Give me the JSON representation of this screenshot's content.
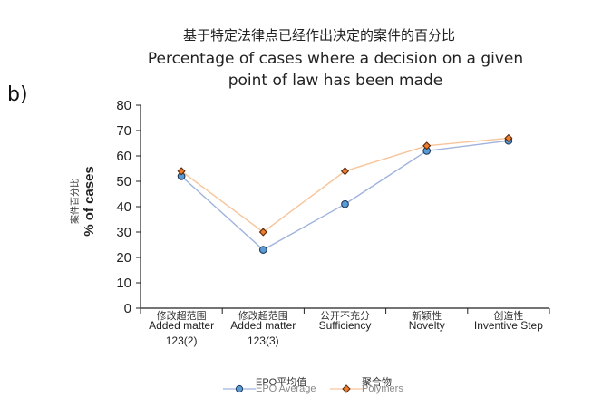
{
  "panel_label": "b)",
  "title_zh": "基于特定法律点已经作出决定的案件的百分比",
  "title_en": "Percentage of cases where a decision on a given point of law has been made",
  "colors": {
    "epo_line": "#9fb3dd",
    "epo_marker_fill": "#5b9bd5",
    "epo_marker_stroke": "#1f3a5a",
    "poly_line": "#f7c49a",
    "poly_marker_fill": "#ed7d31",
    "poly_marker_stroke": "#5a2a0a",
    "axis": "#222222"
  },
  "chart_data": {
    "type": "line",
    "ylabel_zh": "案件百分比",
    "ylabel": "% of cases",
    "ylim": [
      0,
      80
    ],
    "yticks": [
      0,
      10,
      20,
      30,
      40,
      50,
      60,
      70,
      80
    ],
    "grid": false,
    "legend_position": "bottom",
    "categories": [
      {
        "zh": "修改超范围",
        "en": "Added matter",
        "en2": "123(2)"
      },
      {
        "zh": "修改超范围",
        "en": "Added matter",
        "en2": "123(3)"
      },
      {
        "zh": "公开不充分",
        "en": "Sufficiency",
        "en2": ""
      },
      {
        "zh": "新颖性",
        "en": "Novelty",
        "en2": ""
      },
      {
        "zh": "创造性",
        "en": "Inventive Step",
        "en2": ""
      }
    ],
    "series": [
      {
        "name_zh": "EPO平均值",
        "name": "EPO Average",
        "marker": "circle",
        "values": [
          52,
          23,
          41,
          62,
          66
        ]
      },
      {
        "name_zh": "聚合物",
        "name": "Polymers",
        "marker": "diamond",
        "values": [
          54,
          30,
          54,
          64,
          67
        ]
      }
    ]
  }
}
